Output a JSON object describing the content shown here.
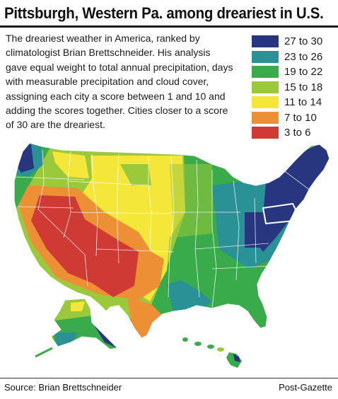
{
  "headline": "Pittsburgh, Western Pa. among dreariest in U.S.",
  "intro": "The dreariest weather in America, ranked by climatologist Brian Brettschneider. His analysis gave equal weight to total annual precipitation, days with measurable precipitation and cloud cover, assigning each city a score between 1 and 10 and adding the scores together. Cities closer to a score of 30 are the dreariest.",
  "legend": [
    {
      "label": "27 to 30",
      "color": "#27367f"
    },
    {
      "label": "23 to 26",
      "color": "#2a9196"
    },
    {
      "label": "19 to 22",
      "color": "#3aab4a"
    },
    {
      "label": "15 to 18",
      "color": "#9bc93c"
    },
    {
      "label": "11 to 14",
      "color": "#f5e73a"
    },
    {
      "label": "7 to 10",
      "color": "#ec8f35"
    },
    {
      "label": "3 to 6",
      "color": "#cf3a34"
    }
  ],
  "source": "Source: Brian Brettschneider",
  "credit": "Post-Gazette"
}
